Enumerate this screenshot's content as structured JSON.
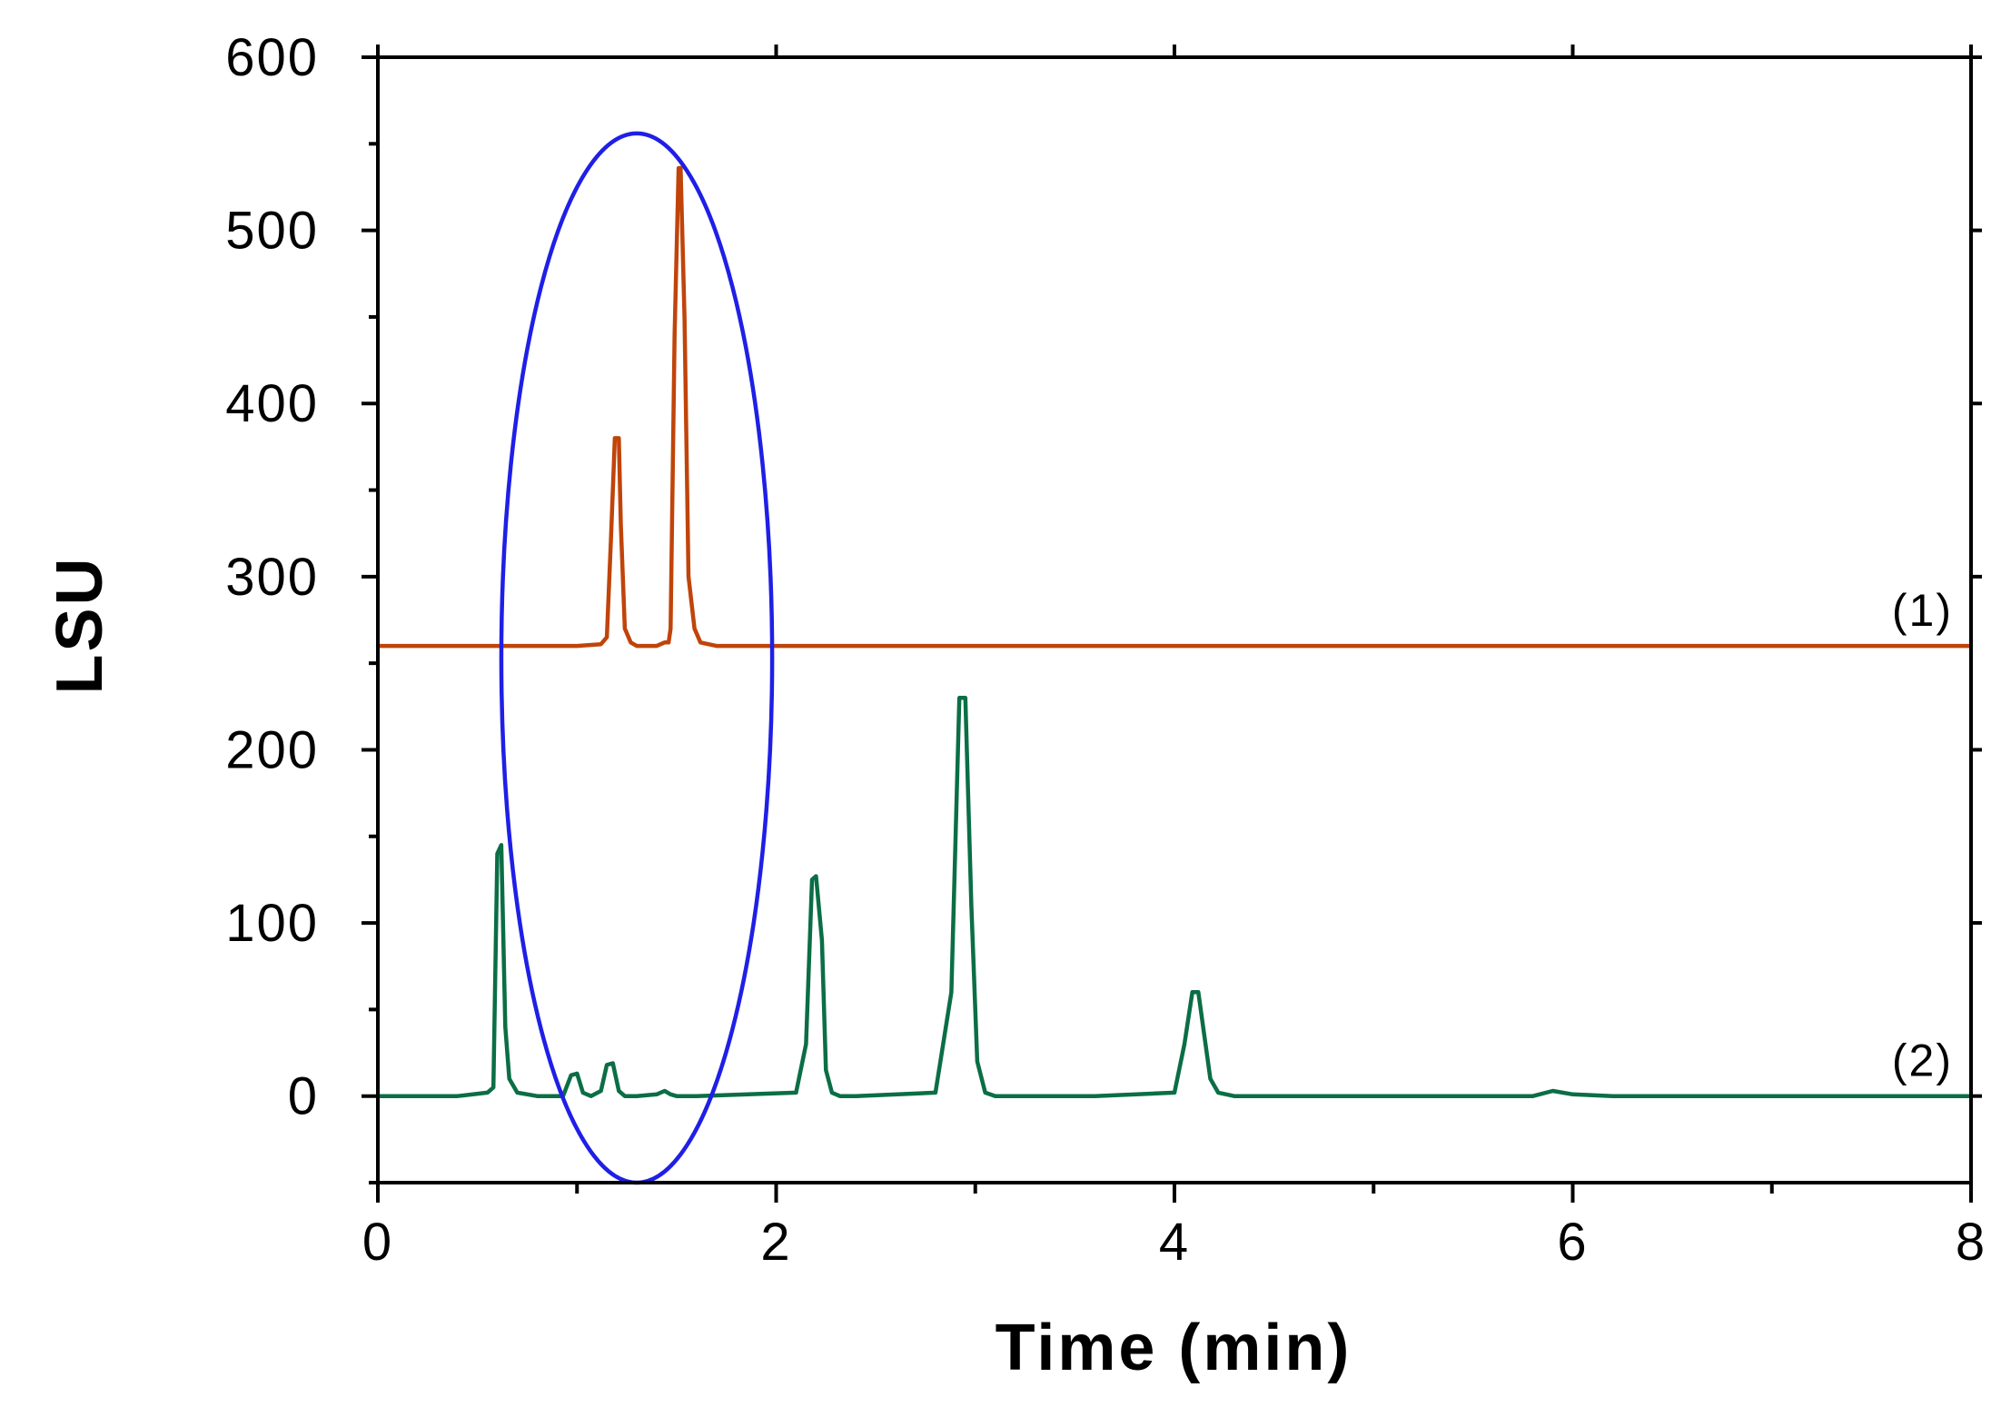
{
  "chart_data": {
    "type": "line",
    "xlabel": "Time (min)",
    "ylabel": "LSU",
    "xlim": [
      0,
      8
    ],
    "ylim": [
      -50,
      600
    ],
    "x_ticks": [
      0,
      2,
      4,
      6,
      8
    ],
    "x_minor_ticks": [
      1,
      3,
      5,
      7
    ],
    "y_ticks": [
      0,
      100,
      200,
      300,
      400,
      500,
      600
    ],
    "y_minor_ticks": [
      -50,
      50,
      150,
      250,
      350,
      450,
      550
    ],
    "grid": false,
    "legend": "none",
    "series": [
      {
        "name": "(1)",
        "color": "#c0440a",
        "x": [
          0,
          1.0,
          1.12,
          1.15,
          1.17,
          1.19,
          1.21,
          1.22,
          1.24,
          1.27,
          1.3,
          1.35,
          1.4,
          1.44,
          1.46,
          1.47,
          1.49,
          1.51,
          1.52,
          1.54,
          1.56,
          1.59,
          1.62,
          1.7,
          2.0,
          8.0
        ],
        "y": [
          260,
          260,
          261,
          265,
          320,
          380,
          380,
          330,
          270,
          262,
          260,
          260,
          260,
          262,
          262,
          270,
          440,
          536,
          536,
          450,
          300,
          270,
          262,
          260,
          260,
          260
        ]
      },
      {
        "name": "(2)",
        "color": "#0b6e45",
        "x": [
          0,
          0.4,
          0.55,
          0.58,
          0.6,
          0.62,
          0.64,
          0.66,
          0.7,
          0.8,
          0.93,
          0.97,
          1.0,
          1.03,
          1.07,
          1.12,
          1.15,
          1.18,
          1.21,
          1.24,
          1.3,
          1.4,
          1.44,
          1.47,
          1.5,
          1.6,
          2.1,
          2.15,
          2.18,
          2.2,
          2.23,
          2.25,
          2.28,
          2.32,
          2.4,
          2.8,
          2.88,
          2.92,
          2.95,
          2.98,
          3.01,
          3.05,
          3.1,
          3.2,
          3.6,
          4.0,
          4.05,
          4.09,
          4.12,
          4.15,
          4.18,
          4.22,
          4.3,
          4.5,
          5.8,
          5.9,
          6.0,
          6.2,
          8.0
        ],
        "y": [
          0,
          0,
          2,
          5,
          140,
          145,
          40,
          10,
          2,
          0,
          0,
          12,
          13,
          2,
          0,
          3,
          18,
          19,
          3,
          0,
          0,
          1,
          3,
          1,
          0,
          0,
          2,
          30,
          125,
          127,
          90,
          15,
          2,
          0,
          0,
          2,
          60,
          230,
          230,
          110,
          20,
          2,
          0,
          0,
          0,
          2,
          30,
          60,
          60,
          35,
          10,
          2,
          0,
          0,
          0,
          3,
          1,
          0,
          0
        ]
      }
    ],
    "annotations": [
      {
        "type": "ellipse",
        "color": "#1f1fe6",
        "cx": 1.3,
        "cy": 253,
        "rx": 0.68,
        "ry": 303
      }
    ]
  }
}
